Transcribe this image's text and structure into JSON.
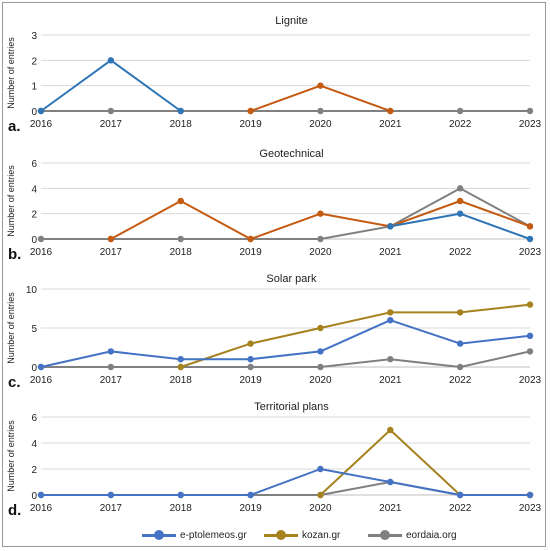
{
  "chart_data": [
    {
      "type": "line",
      "panel_label": "a.",
      "title": "Lignite",
      "ylabel": "Number of entries",
      "categories": [
        "2016",
        "2017",
        "2018",
        "2019",
        "2020",
        "2021",
        "2022",
        "2023"
      ],
      "ylim": [
        0,
        3
      ],
      "yticks": [
        0,
        1,
        2,
        3
      ],
      "series": [
        {
          "name": "e-ptolemeos.gr",
          "color": "#2e75b6",
          "values": [
            0,
            2,
            0,
            null,
            null,
            null,
            null,
            null
          ]
        },
        {
          "name": "kozan.gr",
          "color": "#c55a11",
          "values": [
            null,
            null,
            null,
            0,
            1,
            0,
            null,
            null
          ]
        },
        {
          "name": "eordaia.org",
          "color": "#808080",
          "values": [
            0,
            0,
            0,
            0,
            0,
            0,
            0,
            0
          ]
        }
      ]
    },
    {
      "type": "line",
      "panel_label": "b.",
      "title": "Geotechnical",
      "ylabel": "Number of entries",
      "categories": [
        "2016",
        "2017",
        "2018",
        "2019",
        "2020",
        "2021",
        "2022",
        "2023"
      ],
      "ylim": [
        0,
        6
      ],
      "yticks": [
        0,
        2,
        4,
        6
      ],
      "series": [
        {
          "name": "e-ptolemeos.gr",
          "color": "#2e75b6",
          "values": [
            null,
            null,
            null,
            null,
            null,
            1,
            2,
            0
          ]
        },
        {
          "name": "kozan.gr",
          "color": "#c55a11",
          "values": [
            null,
            0,
            3,
            0,
            2,
            1,
            3,
            1
          ]
        },
        {
          "name": "eordaia.org",
          "color": "#808080",
          "values": [
            0,
            0,
            0,
            0,
            0,
            1,
            4,
            1
          ]
        }
      ]
    },
    {
      "type": "line",
      "panel_label": "c.",
      "title": "Solar park",
      "ylabel": "Number of entries",
      "categories": [
        "2016",
        "2017",
        "2018",
        "2019",
        "2020",
        "2021",
        "2022",
        "2023"
      ],
      "ylim": [
        0,
        10
      ],
      "yticks": [
        0,
        5,
        10
      ],
      "series": [
        {
          "name": "e-ptolemeos.gr",
          "color": "#4472c4",
          "values": [
            0,
            2,
            1,
            1,
            2,
            6,
            3,
            4
          ]
        },
        {
          "name": "kozan.gr",
          "color": "#a5821e",
          "values": [
            null,
            null,
            0,
            3,
            5,
            7,
            7,
            8
          ]
        },
        {
          "name": "eordaia.org",
          "color": "#808080",
          "values": [
            0,
            0,
            0,
            0,
            0,
            1,
            0,
            2
          ]
        }
      ]
    },
    {
      "type": "line",
      "panel_label": "d.",
      "title": "Territorial plans",
      "ylabel": "Number of entries",
      "categories": [
        "2016",
        "2017",
        "2018",
        "2019",
        "2020",
        "2021",
        "2022",
        "2023"
      ],
      "ylim": [
        0,
        6
      ],
      "yticks": [
        0,
        2,
        4,
        6
      ],
      "series": [
        {
          "name": "e-ptolemeos.gr",
          "color": "#4472c4",
          "values": [
            0,
            0,
            0,
            0,
            2,
            1,
            0,
            0
          ]
        },
        {
          "name": "kozan.gr",
          "color": "#a5821e",
          "values": [
            null,
            null,
            null,
            null,
            0,
            5,
            0,
            0
          ]
        },
        {
          "name": "eordaia.org",
          "color": "#808080",
          "values": [
            0,
            0,
            0,
            0,
            0,
            1,
            0,
            0
          ]
        }
      ]
    }
  ],
  "legend": {
    "position": "bottom",
    "items": [
      {
        "label": "e-ptolemeos.gr",
        "color": "#4472c4"
      },
      {
        "label": "kozan.gr",
        "color": "#a5821e"
      },
      {
        "label": "eordaia.org",
        "color": "#808080"
      }
    ]
  }
}
